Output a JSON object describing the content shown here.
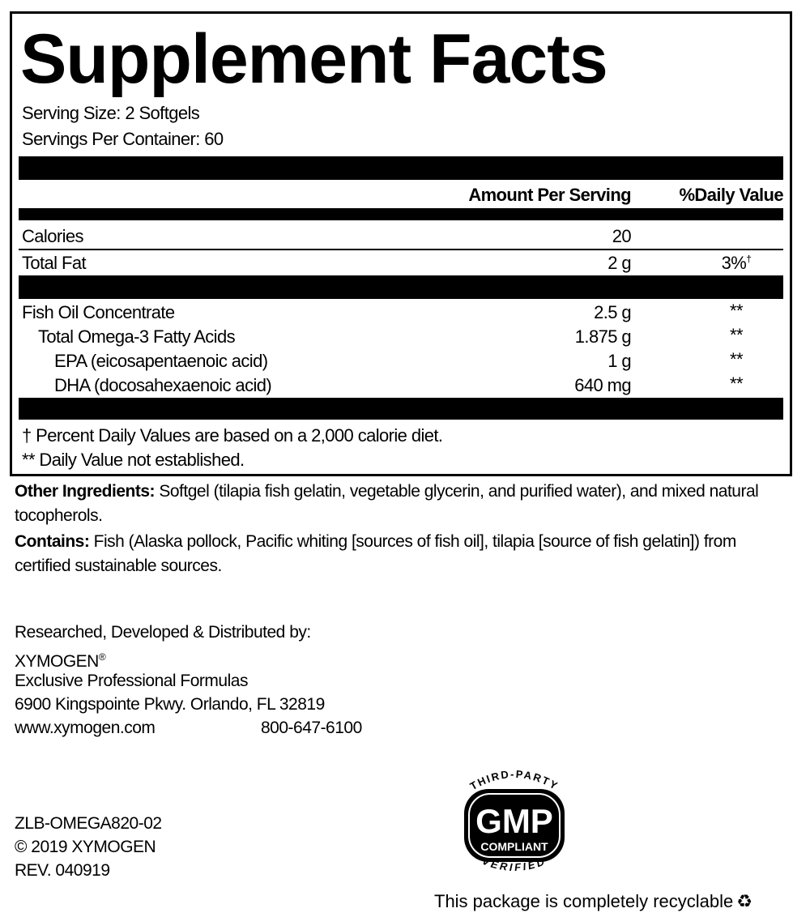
{
  "title": "Supplement Facts",
  "serving_size": "Serving Size: 2 Softgels",
  "servings_per_container": "Servings Per Container: 60",
  "headers": {
    "amount": "Amount Per Serving",
    "dv": "%Daily Value"
  },
  "rows": [
    {
      "name": "Calories",
      "amount": "20",
      "dv": ""
    },
    {
      "name": "Total Fat",
      "amount": "2 g",
      "dv": "3%",
      "dv_mark": "†"
    },
    {
      "name": "Fish Oil Concentrate",
      "amount": "2.5 g",
      "dv": "**"
    },
    {
      "name": "Total Omega-3 Fatty Acids",
      "amount": "1.875 g",
      "dv": "**"
    },
    {
      "name": "EPA (eicosapentaenoic acid)",
      "amount": "1 g",
      "dv": "**"
    },
    {
      "name": "DHA (docosahexaenoic acid)",
      "amount": "640 mg",
      "dv": "**"
    }
  ],
  "footnotes": [
    "† Percent Daily Values are based on a 2,000 calorie diet.",
    "** Daily Value not established."
  ],
  "other_ingredients": {
    "label": "Other Ingredients:",
    "text": " Softgel (tilapia fish gelatin, vegetable glycerin, and purified water), and mixed natural tocopherols."
  },
  "contains": {
    "label": "Contains:",
    "text": " Fish (Alaska pollock, Pacific whiting [sources of fish oil], tilapia [source of fish gelatin]) from certified sustainable sources."
  },
  "distributor": {
    "line1": "Researched, Developed & Distributed by:",
    "brand": "XYMOGEN",
    "reg": "®",
    "line3": "Exclusive Professional Formulas",
    "address": "6900 Kingspointe Pkwy. Orlando, FL 32819",
    "website": "www.xymogen.com",
    "phone": "800-647-6100"
  },
  "codes": [
    "ZLB-OMEGA820-02",
    "© 2019 XYMOGEN",
    "REV. 040919"
  ],
  "badge": {
    "top": "THIRD-PARTY",
    "main": "GMP",
    "sub": "COMPLIANT",
    "bottom": "VERIFIED"
  },
  "recyclable": "This package is completely recyclable",
  "icons": [
    "recycle-icon"
  ]
}
